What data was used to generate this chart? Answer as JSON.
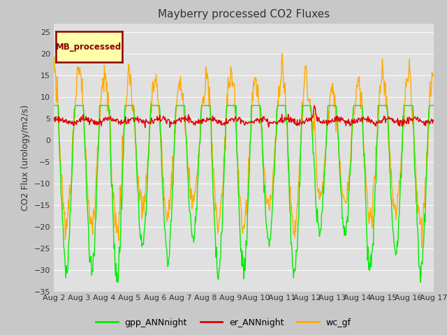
{
  "title": "Mayberry processed CO2 Fluxes",
  "ylabel": "CO2 Flux (urology/m2/s)",
  "ylim": [
    -35,
    27
  ],
  "yticks": [
    -35,
    -30,
    -25,
    -20,
    -15,
    -10,
    -5,
    0,
    5,
    10,
    15,
    20,
    25
  ],
  "fig_facecolor": "#c8c8c8",
  "ax_facecolor": "#e0e0e0",
  "legend_label": "MB_processed",
  "legend_text_color": "#8b0000",
  "legend_box_facecolor": "#ffffaa",
  "line_colors": {
    "gpp": "#00ee00",
    "er": "#dd0000",
    "wc": "#ffaa00"
  },
  "line_width": 1.0,
  "n_days": 15,
  "ppd": 48,
  "day_start": 2,
  "title_fontsize": 11,
  "tick_fontsize": 8,
  "ylabel_fontsize": 9,
  "legend_entries": [
    "gpp_ANNnight",
    "er_ANNnight",
    "wc_gf"
  ],
  "grid_color": "#ffffff",
  "spike_day": 10.3
}
